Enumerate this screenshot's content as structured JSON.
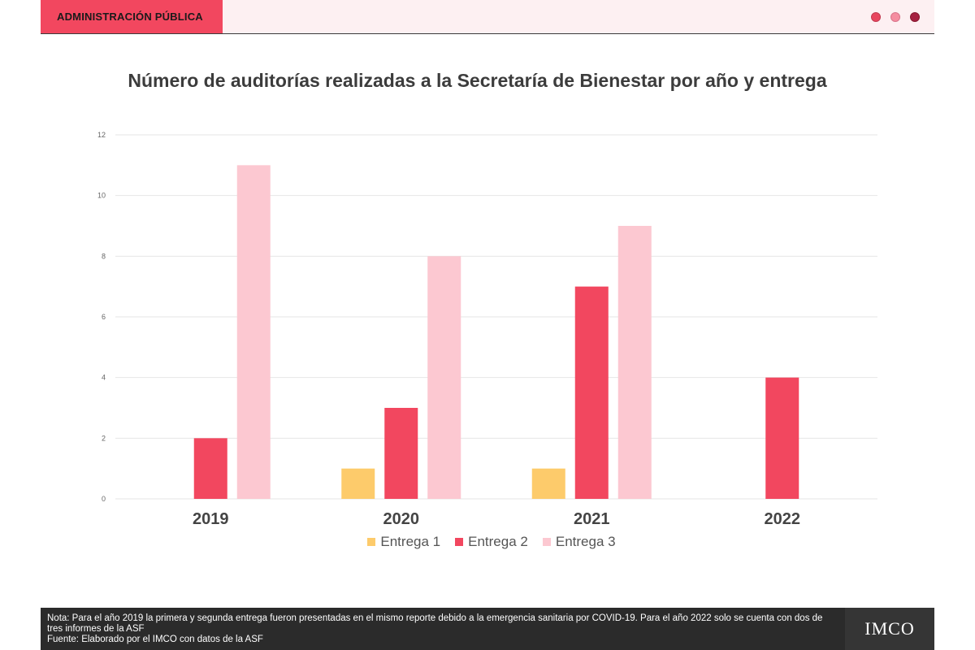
{
  "header": {
    "section": "ADMINISTRACIÓN PÚBLICA",
    "dot_colors": [
      "#e8455e",
      "#f58da0",
      "#a52040"
    ]
  },
  "chart_data": {
    "type": "bar",
    "title": "Número de auditorías realizadas a la Secretaría de Bienestar por año y entrega",
    "categories": [
      "2019",
      "2020",
      "2021",
      "2022"
    ],
    "series": [
      {
        "name": "Entrega 1",
        "color": "#fdcb6b",
        "values": [
          0,
          1,
          1,
          0
        ]
      },
      {
        "name": "Entrega 2",
        "color": "#f2475f",
        "values": [
          2,
          3,
          7,
          4
        ]
      },
      {
        "name": "Entrega 3",
        "color": "#fcc8d1",
        "values": [
          11,
          8,
          9,
          0
        ]
      }
    ],
    "ylim": [
      0,
      12
    ],
    "yticks": [
      "0",
      "2",
      "4",
      "6",
      "8",
      "10",
      "12"
    ],
    "grid": true,
    "legend_position": "bottom"
  },
  "footer": {
    "note": "Nota: Para el año 2019 la primera y segunda entrega fueron presentadas en el mismo reporte debido a la emergencia sanitaria por COVID-19. Para el año 2022 solo se cuenta con dos de tres informes de la ASF",
    "source": "Fuente: Elaborado por el IMCO con datos de la ASF",
    "logo": "IMCO"
  }
}
